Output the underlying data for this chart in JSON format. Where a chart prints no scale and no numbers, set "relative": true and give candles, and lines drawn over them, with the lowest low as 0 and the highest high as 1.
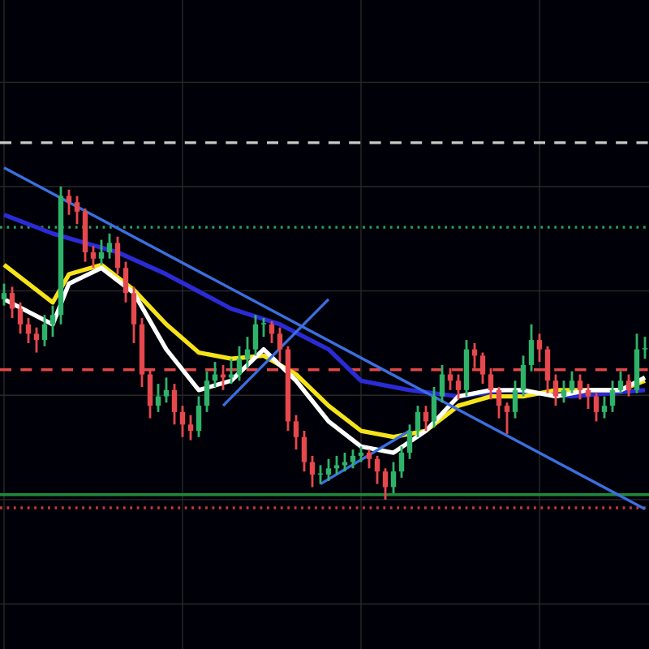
{
  "chart_data": {
    "type": "candlestick",
    "relative": true,
    "grid": true,
    "tick_labels": false,
    "categories": [
      null,
      null,
      null,
      null,
      null,
      null,
      null,
      null,
      null,
      null,
      null,
      null,
      null,
      null,
      null,
      null,
      null,
      null,
      null,
      null,
      null,
      null,
      null,
      null,
      null,
      null,
      null,
      null,
      null,
      null,
      null,
      null,
      null,
      null,
      null,
      null,
      null,
      null,
      null,
      null,
      null,
      null,
      null,
      null,
      null,
      null,
      null,
      null,
      null,
      null,
      null,
      null,
      null,
      null,
      null,
      null,
      null,
      null,
      null,
      null,
      null,
      null,
      null,
      null,
      null,
      null,
      null,
      null,
      null,
      null,
      null,
      null,
      null,
      null,
      null,
      null,
      null,
      null,
      null,
      null
    ],
    "ohlc": [
      [
        0.64,
        0.69,
        0.62,
        0.66
      ],
      [
        0.66,
        0.68,
        0.58,
        0.61
      ],
      [
        0.61,
        0.63,
        0.53,
        0.56
      ],
      [
        0.56,
        0.58,
        0.5,
        0.53
      ],
      [
        0.53,
        0.55,
        0.47,
        0.51
      ],
      [
        0.51,
        0.59,
        0.49,
        0.56
      ],
      [
        0.56,
        0.62,
        0.52,
        0.59
      ],
      [
        0.59,
        1.0,
        0.56,
        0.97
      ],
      [
        0.97,
        0.99,
        0.91,
        0.95
      ],
      [
        0.95,
        0.97,
        0.88,
        0.92
      ],
      [
        0.92,
        0.93,
        0.76,
        0.79
      ],
      [
        0.79,
        0.81,
        0.74,
        0.77
      ],
      [
        0.77,
        0.83,
        0.75,
        0.79
      ],
      [
        0.79,
        0.85,
        0.77,
        0.82
      ],
      [
        0.82,
        0.84,
        0.72,
        0.74
      ],
      [
        0.74,
        0.76,
        0.63,
        0.66
      ],
      [
        0.66,
        0.68,
        0.5,
        0.56
      ],
      [
        0.56,
        0.58,
        0.36,
        0.4
      ],
      [
        0.4,
        0.42,
        0.26,
        0.3
      ],
      [
        0.3,
        0.37,
        0.28,
        0.33
      ],
      [
        0.33,
        0.39,
        0.31,
        0.35
      ],
      [
        0.35,
        0.37,
        0.24,
        0.28
      ],
      [
        0.28,
        0.3,
        0.2,
        0.24
      ],
      [
        0.24,
        0.27,
        0.19,
        0.22
      ],
      [
        0.22,
        0.33,
        0.2,
        0.3
      ],
      [
        0.3,
        0.41,
        0.28,
        0.38
      ],
      [
        0.38,
        0.44,
        0.36,
        0.4
      ],
      [
        0.4,
        0.43,
        0.35,
        0.39
      ],
      [
        0.39,
        0.45,
        0.37,
        0.4
      ],
      [
        0.4,
        0.49,
        0.38,
        0.45
      ],
      [
        0.45,
        0.52,
        0.42,
        0.48
      ],
      [
        0.48,
        0.59,
        0.46,
        0.56
      ],
      [
        0.56,
        0.58,
        0.52,
        0.56
      ],
      [
        0.56,
        0.57,
        0.5,
        0.53
      ],
      [
        0.53,
        0.55,
        0.44,
        0.48
      ],
      [
        0.48,
        0.49,
        0.22,
        0.25
      ],
      [
        0.25,
        0.27,
        0.16,
        0.2
      ],
      [
        0.2,
        0.22,
        0.09,
        0.12
      ],
      [
        0.12,
        0.14,
        0.04,
        0.08
      ],
      [
        0.08,
        0.11,
        0.05,
        0.08
      ],
      [
        0.08,
        0.13,
        0.06,
        0.1
      ],
      [
        0.1,
        0.14,
        0.08,
        0.11
      ],
      [
        0.11,
        0.15,
        0.09,
        0.12
      ],
      [
        0.12,
        0.16,
        0.1,
        0.14
      ],
      [
        0.14,
        0.17,
        0.12,
        0.15
      ],
      [
        0.15,
        0.16,
        0.1,
        0.13
      ],
      [
        0.13,
        0.14,
        0.05,
        0.09
      ],
      [
        0.09,
        0.1,
        0.0,
        0.04
      ],
      [
        0.04,
        0.12,
        0.02,
        0.09
      ],
      [
        0.09,
        0.17,
        0.07,
        0.15
      ],
      [
        0.15,
        0.24,
        0.13,
        0.22
      ],
      [
        0.22,
        0.3,
        0.2,
        0.28
      ],
      [
        0.28,
        0.3,
        0.22,
        0.25
      ],
      [
        0.25,
        0.36,
        0.23,
        0.33
      ],
      [
        0.33,
        0.43,
        0.31,
        0.4
      ],
      [
        0.4,
        0.42,
        0.35,
        0.38
      ],
      [
        0.38,
        0.4,
        0.32,
        0.35
      ],
      [
        0.35,
        0.51,
        0.33,
        0.48
      ],
      [
        0.48,
        0.5,
        0.42,
        0.46
      ],
      [
        0.46,
        0.47,
        0.37,
        0.4
      ],
      [
        0.4,
        0.42,
        0.32,
        0.35
      ],
      [
        0.35,
        0.36,
        0.26,
        0.3
      ],
      [
        0.3,
        0.31,
        0.21,
        0.28
      ],
      [
        0.28,
        0.38,
        0.26,
        0.35
      ],
      [
        0.35,
        0.46,
        0.33,
        0.43
      ],
      [
        0.43,
        0.56,
        0.41,
        0.51
      ],
      [
        0.51,
        0.53,
        0.44,
        0.48
      ],
      [
        0.48,
        0.49,
        0.34,
        0.38
      ],
      [
        0.38,
        0.4,
        0.3,
        0.33
      ],
      [
        0.33,
        0.38,
        0.31,
        0.35
      ],
      [
        0.35,
        0.41,
        0.34,
        0.38
      ],
      [
        0.38,
        0.4,
        0.32,
        0.35
      ],
      [
        0.35,
        0.37,
        0.29,
        0.33
      ],
      [
        0.33,
        0.34,
        0.25,
        0.28
      ],
      [
        0.28,
        0.33,
        0.26,
        0.3
      ],
      [
        0.3,
        0.38,
        0.28,
        0.35
      ],
      [
        0.35,
        0.41,
        0.34,
        0.38
      ],
      [
        0.38,
        0.4,
        0.33,
        0.35
      ],
      [
        0.35,
        0.53,
        0.34,
        0.48
      ],
      [
        0.48,
        0.52,
        0.45,
        0.48
      ]
    ],
    "series": [
      {
        "type": "line",
        "color": "#2b2bd6",
        "values": [
          0.91,
          null,
          null,
          null,
          null,
          null,
          0.85,
          null,
          null,
          null,
          0.82,
          null,
          null,
          null,
          0.79,
          null,
          null,
          null,
          null,
          null,
          0.72,
          null,
          null,
          null,
          null,
          null,
          null,
          null,
          0.61,
          null,
          null,
          null,
          null,
          null,
          0.56,
          null,
          null,
          null,
          null,
          null,
          0.48,
          null,
          null,
          null,
          0.38,
          null,
          null,
          null,
          null,
          null,
          0.35,
          null,
          null,
          null,
          null,
          null,
          0.33,
          null,
          null,
          null,
          null,
          null,
          0.35,
          null,
          null,
          null,
          null,
          null,
          null,
          null,
          0.33,
          null,
          null,
          null,
          null,
          null,
          null,
          null,
          null,
          0.35
        ]
      },
      {
        "type": "line",
        "color": "#f5e31a",
        "values": [
          0.75,
          null,
          null,
          null,
          null,
          null,
          0.63,
          null,
          0.72,
          null,
          null,
          null,
          0.75,
          null,
          null,
          null,
          0.67,
          null,
          null,
          null,
          0.56,
          null,
          null,
          null,
          0.47,
          null,
          null,
          null,
          0.45,
          null,
          null,
          null,
          0.46,
          null,
          null,
          null,
          0.4,
          null,
          null,
          null,
          0.3,
          null,
          null,
          null,
          0.22,
          null,
          null,
          null,
          0.2,
          null,
          null,
          null,
          0.22,
          null,
          null,
          null,
          0.3,
          null,
          null,
          null,
          0.33,
          null,
          null,
          null,
          0.33,
          null,
          null,
          null,
          0.35,
          null,
          null,
          null,
          0.35,
          null,
          null,
          null,
          0.35,
          null,
          null,
          0.38
        ]
      },
      {
        "type": "line",
        "color": "#ffffff",
        "values": [
          0.64,
          null,
          null,
          null,
          null,
          null,
          0.56,
          null,
          0.69,
          null,
          null,
          null,
          0.74,
          null,
          null,
          null,
          0.66,
          null,
          null,
          null,
          0.48,
          null,
          null,
          null,
          0.35,
          null,
          null,
          null,
          0.38,
          null,
          null,
          null,
          0.48,
          null,
          null,
          null,
          0.38,
          null,
          null,
          null,
          0.25,
          null,
          null,
          null,
          0.17,
          null,
          null,
          null,
          0.15,
          null,
          null,
          null,
          0.22,
          null,
          null,
          null,
          0.33,
          null,
          null,
          null,
          0.35,
          null,
          null,
          null,
          0.35,
          null,
          null,
          null,
          0.33,
          null,
          null,
          null,
          0.35,
          null,
          null,
          null,
          0.35,
          null,
          null,
          0.39
        ]
      },
      {
        "type": "line",
        "color": "#3b6fe0",
        "values": [
          1.06,
          null,
          null,
          null,
          null,
          null,
          null,
          null,
          null,
          null,
          null,
          null,
          null,
          null,
          null,
          null,
          null,
          null,
          null,
          null,
          null,
          null,
          null,
          null,
          null,
          null,
          null,
          null,
          null,
          null,
          null,
          null,
          null,
          null,
          null,
          null,
          null,
          null,
          null,
          null,
          null,
          null,
          null,
          null,
          null,
          null,
          null,
          null,
          null,
          null,
          null,
          null,
          null,
          null,
          null,
          null,
          null,
          null,
          null,
          null,
          null,
          null,
          null,
          null,
          null,
          null,
          null,
          null,
          null,
          null,
          null,
          null,
          null,
          null,
          null,
          null,
          null,
          null,
          null,
          -0.03
        ]
      },
      {
        "type": "line",
        "color": "#3b6fe0",
        "values": [
          null,
          null,
          null,
          null,
          null,
          null,
          null,
          null,
          null,
          null,
          null,
          null,
          null,
          null,
          null,
          null,
          null,
          null,
          null,
          null,
          null,
          null,
          null,
          null,
          null,
          null,
          null,
          0.3,
          null,
          null,
          null,
          null,
          null,
          null,
          null,
          null,
          null,
          null,
          null,
          null,
          0.64,
          null,
          null,
          null,
          null,
          null,
          null,
          null,
          null,
          null,
          null,
          null,
          null,
          null,
          null,
          null,
          null,
          null,
          null,
          null,
          null,
          null,
          null,
          null,
          null,
          null,
          null,
          null,
          null,
          null,
          null,
          null,
          null,
          null,
          null,
          null,
          null,
          null,
          null,
          null
        ]
      },
      {
        "type": "line",
        "color": "#3b6fe0",
        "values": [
          null,
          null,
          null,
          null,
          null,
          null,
          null,
          null,
          null,
          null,
          null,
          null,
          null,
          null,
          null,
          null,
          null,
          null,
          null,
          null,
          null,
          null,
          null,
          null,
          null,
          null,
          null,
          null,
          null,
          null,
          null,
          null,
          null,
          null,
          null,
          null,
          null,
          null,
          null,
          0.05,
          null,
          null,
          null,
          null,
          null,
          null,
          null,
          null,
          null,
          null,
          0.22,
          null,
          null,
          null,
          null,
          null,
          null,
          null,
          null,
          null,
          null,
          null,
          null,
          null,
          null,
          null,
          null,
          null,
          null,
          null,
          null,
          null,
          null,
          null,
          null,
          null,
          null,
          null,
          null,
          null
        ]
      }
    ],
    "ref_lines": [
      {
        "axis": "y",
        "value": 1.14,
        "color": "#c8c8c8",
        "line_style": "dashed"
      },
      {
        "axis": "y",
        "value": 0.87,
        "color": "#2e9e5b",
        "line_style": "dotted"
      },
      {
        "axis": "y",
        "value": 0.415,
        "color": "#e04848",
        "line_style": "dashed"
      },
      {
        "axis": "y",
        "value": 0.016,
        "color": "#1f8a3c",
        "line_style": "solid"
      },
      {
        "axis": "y",
        "value": -0.026,
        "color": "#c83a3a",
        "line_style": "dotted"
      }
    ]
  }
}
